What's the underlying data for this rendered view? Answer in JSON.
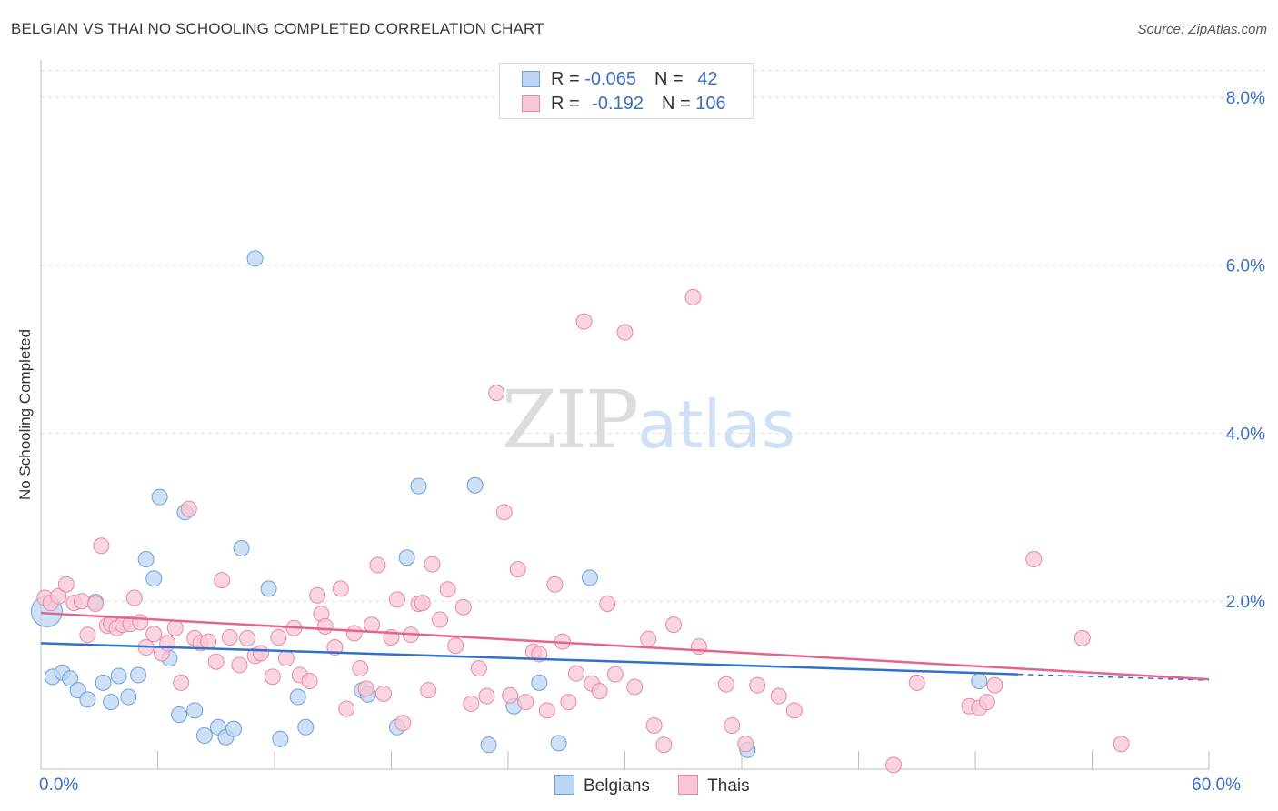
{
  "header": {
    "title": "BELGIAN VS THAI NO SCHOOLING COMPLETED CORRELATION CHART",
    "source": "Source: ZipAtlas.com"
  },
  "watermark": {
    "zip": "ZIP",
    "atlas": "atlas"
  },
  "legend": {
    "rows": [
      {
        "r_label": "R = ",
        "r_value": "-0.065",
        "n_label": "N = ",
        "n_value": "42",
        "fill": "#bcd5f3",
        "stroke": "#6f9edb"
      },
      {
        "r_label": "R = ",
        "r_value": "-0.192",
        "n_label": "N = ",
        "n_value": "106",
        "fill": "#f8c7d6",
        "stroke": "#e58aa6"
      }
    ],
    "bottom": [
      {
        "label": "Belgians",
        "fill": "#bcd5f3",
        "stroke": "#6f9edb"
      },
      {
        "label": "Thais",
        "fill": "#f8c7d6",
        "stroke": "#e58aa6"
      }
    ]
  },
  "chart_data": {
    "type": "scatter",
    "title": "BELGIAN VS THAI NO SCHOOLING COMPLETED CORRELATION CHART",
    "xlabel": "",
    "ylabel": "No Schooling Completed",
    "xlim": [
      0,
      60
    ],
    "ylim": [
      0,
      8.4
    ],
    "x_ticks": [
      0,
      6,
      12,
      18,
      24,
      30,
      36,
      42,
      48,
      54,
      60
    ],
    "x_tick_labels": [
      "0.0%",
      "",
      "",
      "",
      "",
      "",
      "",
      "",
      "",
      "",
      "60.0%"
    ],
    "y_ticks": [
      2,
      4,
      6,
      8
    ],
    "y_tick_labels": [
      "2.0%",
      "4.0%",
      "6.0%",
      "8.0%"
    ],
    "grid": "horizontal dashed",
    "legend_position": "top-center",
    "colors": {
      "belgians_fill": "#bcd5f3",
      "belgians_stroke": "#6f9edb",
      "belgians_line": "#2f6fcf",
      "thais_fill": "#f8c7d6",
      "thais_stroke": "#e58aa6",
      "thais_line": "#e4648f",
      "tick_label": "#3a6fc4"
    },
    "series": [
      {
        "name": "Belgians",
        "R": -0.065,
        "N": 42,
        "trend": {
          "x": [
            0,
            50.2
          ],
          "y": [
            1.5,
            1.13
          ],
          "dashed_extension_to_x": 60,
          "dashed_y_end": 1.06
        },
        "points": [
          [
            0.3,
            1.88
          ],
          [
            0.6,
            1.1
          ],
          [
            1.1,
            1.15
          ],
          [
            1.5,
            1.08
          ],
          [
            1.9,
            0.94
          ],
          [
            2.4,
            0.83
          ],
          [
            2.8,
            1.99
          ],
          [
            3.2,
            1.03
          ],
          [
            3.6,
            0.8
          ],
          [
            4.0,
            1.11
          ],
          [
            4.5,
            0.86
          ],
          [
            5.0,
            1.12
          ],
          [
            5.4,
            2.5
          ],
          [
            5.8,
            2.27
          ],
          [
            6.1,
            3.24
          ],
          [
            6.6,
            1.32
          ],
          [
            7.1,
            0.65
          ],
          [
            7.4,
            3.06
          ],
          [
            7.9,
            0.7
          ],
          [
            8.4,
            0.4
          ],
          [
            9.1,
            0.5
          ],
          [
            9.5,
            0.38
          ],
          [
            9.9,
            0.48
          ],
          [
            10.3,
            2.63
          ],
          [
            11.0,
            6.08
          ],
          [
            11.7,
            2.15
          ],
          [
            12.3,
            0.36
          ],
          [
            13.2,
            0.86
          ],
          [
            13.6,
            0.5
          ],
          [
            16.5,
            0.94
          ],
          [
            16.8,
            0.89
          ],
          [
            18.3,
            0.5
          ],
          [
            18.8,
            2.52
          ],
          [
            19.4,
            3.37
          ],
          [
            22.3,
            3.38
          ],
          [
            23.0,
            0.29
          ],
          [
            24.3,
            0.75
          ],
          [
            25.6,
            1.03
          ],
          [
            26.6,
            0.31
          ],
          [
            28.2,
            2.28
          ],
          [
            36.3,
            0.23
          ],
          [
            48.2,
            1.05
          ]
        ]
      },
      {
        "name": "Thais",
        "R": -0.192,
        "N": 106,
        "trend": {
          "x": [
            0,
            60
          ],
          "y": [
            1.86,
            1.07
          ]
        },
        "points": [
          [
            0.2,
            2.04
          ],
          [
            0.5,
            1.98
          ],
          [
            0.9,
            2.06
          ],
          [
            1.3,
            2.2
          ],
          [
            1.7,
            1.98
          ],
          [
            2.1,
            2.0
          ],
          [
            2.4,
            1.6
          ],
          [
            2.8,
            1.97
          ],
          [
            3.1,
            2.66
          ],
          [
            3.4,
            1.71
          ],
          [
            3.6,
            1.73
          ],
          [
            3.9,
            1.68
          ],
          [
            4.2,
            1.72
          ],
          [
            4.6,
            1.73
          ],
          [
            4.8,
            2.04
          ],
          [
            5.1,
            1.75
          ],
          [
            5.4,
            1.45
          ],
          [
            5.8,
            1.61
          ],
          [
            6.2,
            1.38
          ],
          [
            6.5,
            1.5
          ],
          [
            6.9,
            1.68
          ],
          [
            7.2,
            1.03
          ],
          [
            7.6,
            3.1
          ],
          [
            7.9,
            1.56
          ],
          [
            8.2,
            1.5
          ],
          [
            8.6,
            1.52
          ],
          [
            9.0,
            1.28
          ],
          [
            9.3,
            2.25
          ],
          [
            9.7,
            1.57
          ],
          [
            10.2,
            1.24
          ],
          [
            10.6,
            1.56
          ],
          [
            11.0,
            1.35
          ],
          [
            11.3,
            1.38
          ],
          [
            11.9,
            1.1
          ],
          [
            12.2,
            1.57
          ],
          [
            12.6,
            1.32
          ],
          [
            13.0,
            1.68
          ],
          [
            13.3,
            1.12
          ],
          [
            13.8,
            1.05
          ],
          [
            14.2,
            2.07
          ],
          [
            14.4,
            1.85
          ],
          [
            14.6,
            1.7
          ],
          [
            15.1,
            1.45
          ],
          [
            15.4,
            2.15
          ],
          [
            15.7,
            0.72
          ],
          [
            16.1,
            1.62
          ],
          [
            16.4,
            1.2
          ],
          [
            16.7,
            0.96
          ],
          [
            17.0,
            1.72
          ],
          [
            17.3,
            2.43
          ],
          [
            17.6,
            0.9
          ],
          [
            18.0,
            1.57
          ],
          [
            18.3,
            2.02
          ],
          [
            18.6,
            0.55
          ],
          [
            19.0,
            1.6
          ],
          [
            19.4,
            1.97
          ],
          [
            19.6,
            1.98
          ],
          [
            19.9,
            0.94
          ],
          [
            20.1,
            2.44
          ],
          [
            20.5,
            1.78
          ],
          [
            20.9,
            2.14
          ],
          [
            21.3,
            1.47
          ],
          [
            21.7,
            1.93
          ],
          [
            22.1,
            0.78
          ],
          [
            22.5,
            1.2
          ],
          [
            22.9,
            0.87
          ],
          [
            23.4,
            4.48
          ],
          [
            23.8,
            3.06
          ],
          [
            24.1,
            0.88
          ],
          [
            24.5,
            2.38
          ],
          [
            24.9,
            0.8
          ],
          [
            25.3,
            1.4
          ],
          [
            25.6,
            1.37
          ],
          [
            26.0,
            0.7
          ],
          [
            26.4,
            2.2
          ],
          [
            26.8,
            1.52
          ],
          [
            27.1,
            0.8
          ],
          [
            27.5,
            1.14
          ],
          [
            27.9,
            5.33
          ],
          [
            28.3,
            1.02
          ],
          [
            28.7,
            0.93
          ],
          [
            29.1,
            1.97
          ],
          [
            29.5,
            1.13
          ],
          [
            30.0,
            5.2
          ],
          [
            30.5,
            0.98
          ],
          [
            31.2,
            1.55
          ],
          [
            31.5,
            0.52
          ],
          [
            32.0,
            0.29
          ],
          [
            32.5,
            1.72
          ],
          [
            33.5,
            5.62
          ],
          [
            33.8,
            1.46
          ],
          [
            35.2,
            1.01
          ],
          [
            35.5,
            0.52
          ],
          [
            36.2,
            0.3
          ],
          [
            36.8,
            1.0
          ],
          [
            37.9,
            0.87
          ],
          [
            38.7,
            0.7
          ],
          [
            43.8,
            0.05
          ],
          [
            45.0,
            1.03
          ],
          [
            47.7,
            0.75
          ],
          [
            48.2,
            0.73
          ],
          [
            48.6,
            0.8
          ],
          [
            49.0,
            1.0
          ],
          [
            51.0,
            2.5
          ],
          [
            53.5,
            1.56
          ],
          [
            55.5,
            0.3
          ]
        ]
      }
    ]
  }
}
